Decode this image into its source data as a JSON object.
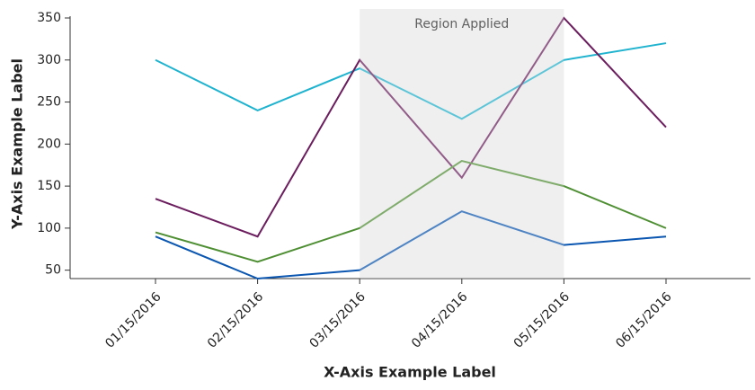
{
  "chart_data": {
    "type": "line",
    "x_label": "X-Axis Example Label",
    "y_label": "Y-Axis Example Label",
    "categories": [
      "01/15/2016",
      "02/15/2016",
      "03/15/2016",
      "04/15/2016",
      "05/15/2016",
      "06/15/2016"
    ],
    "series": [
      {
        "color": "#1fb3cf",
        "values": [
          300,
          240,
          290,
          230,
          300,
          320
        ]
      },
      {
        "color": "#6b1d5e",
        "values": [
          135,
          90,
          300,
          160,
          350,
          220
        ]
      },
      {
        "color": "#4f8f33",
        "values": [
          95,
          60,
          100,
          180,
          150,
          100
        ]
      },
      {
        "color": "#0a56b0",
        "values": [
          90,
          40,
          50,
          120,
          80,
          90
        ]
      }
    ],
    "regions": [
      {
        "start": "03/15/2016",
        "end": "05/15/2016",
        "label": "Region Applied"
      }
    ],
    "ylim": [
      40,
      350
    ],
    "yticks": [
      50,
      100,
      150,
      200,
      250,
      300,
      350
    ]
  }
}
